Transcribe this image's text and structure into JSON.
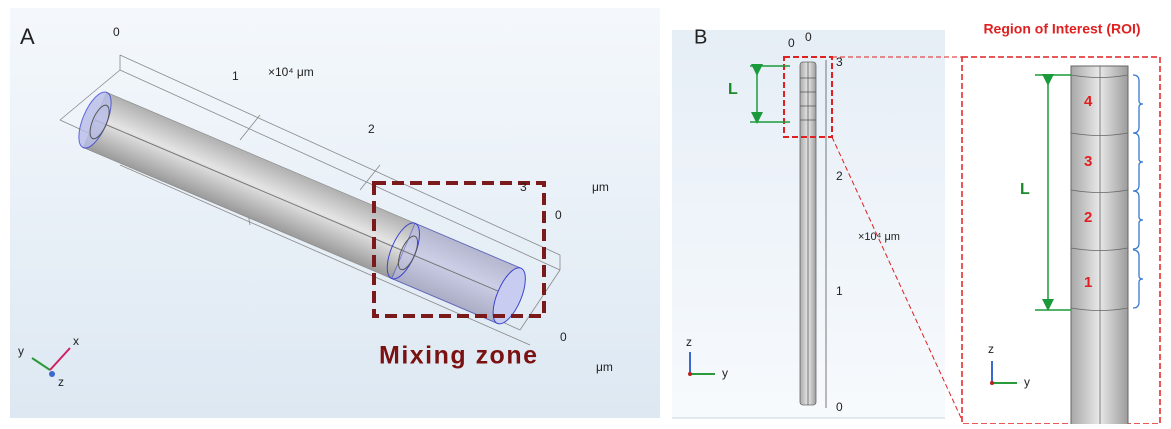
{
  "panel_a": {
    "label": "A",
    "axis_ticks": [
      "0",
      "1",
      "2",
      "3"
    ],
    "axis_unit": "×10⁴ μm",
    "unit_labels": [
      "μm",
      "μm"
    ],
    "zero_labels": [
      "0",
      "0"
    ],
    "annotation": "Mixing zone",
    "triad": [
      "y",
      "x",
      "z"
    ]
  },
  "panel_b": {
    "label": "B",
    "top_ticks": [
      "0",
      "0"
    ],
    "z_ticks": [
      "3",
      "2",
      "1",
      "0"
    ],
    "unit": "×10⁴ μm",
    "length_label": "L",
    "triad": [
      "z",
      "y"
    ]
  },
  "roi": {
    "title": "Region of Interest (ROI)",
    "length_label": "L",
    "segments": [
      "4",
      "3",
      "2",
      "1"
    ],
    "triad": [
      "z",
      "y"
    ]
  }
}
